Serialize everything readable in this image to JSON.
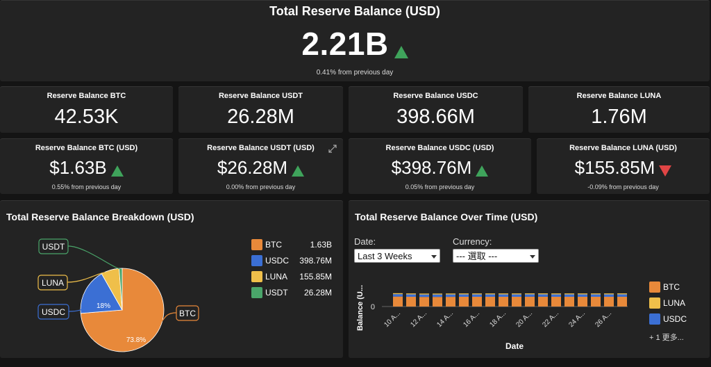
{
  "colors": {
    "btc": "#e8893a",
    "usdc": "#3b6fd4",
    "luna": "#efbf4a",
    "usdt": "#4aa56a",
    "up": "#3fa35b",
    "down": "#e04545"
  },
  "total": {
    "title": "Total Reserve Balance (USD)",
    "value": "2.21B",
    "trend": "up",
    "change": "0.41% from previous day"
  },
  "counts": [
    {
      "title": "Reserve Balance BTC",
      "value": "42.53K"
    },
    {
      "title": "Reserve Balance USDT",
      "value": "26.28M"
    },
    {
      "title": "Reserve Balance USDC",
      "value": "398.66M"
    },
    {
      "title": "Reserve Balance LUNA",
      "value": "1.76M"
    }
  ],
  "usd": [
    {
      "title": "Reserve Balance BTC (USD)",
      "value": "$1.63B",
      "trend": "up",
      "change": "0.55% from previous day"
    },
    {
      "title": "Reserve Balance USDT (USD)",
      "value": "$26.28M",
      "trend": "up",
      "change": "0.00% from previous day"
    },
    {
      "title": "Reserve Balance USDC (USD)",
      "value": "$398.76M",
      "trend": "up",
      "change": "0.05% from previous day"
    },
    {
      "title": "Reserve Balance LUNA (USD)",
      "value": "$155.85M",
      "trend": "down",
      "change": "-0.09% from previous day"
    }
  ],
  "breakdown": {
    "title": "Total Reserve Balance Breakdown (USD)",
    "legend": [
      {
        "name": "BTC",
        "value": "1.63B",
        "color": "#e8893a"
      },
      {
        "name": "USDC",
        "value": "398.76M",
        "color": "#3b6fd4"
      },
      {
        "name": "LUNA",
        "value": "155.85M",
        "color": "#efbf4a"
      },
      {
        "name": "USDT",
        "value": "26.28M",
        "color": "#4aa56a"
      }
    ],
    "callouts": {
      "usdt": "USDT",
      "luna": "LUNA",
      "usdc": "USDC",
      "btc": "BTC"
    },
    "pct_labels": {
      "btc": "73.8%",
      "usdc": "18%"
    }
  },
  "chart_data": [
    {
      "type": "pie",
      "labels": [
        "BTC",
        "USDC",
        "LUNA",
        "USDT"
      ],
      "values": [
        1630000000,
        398760000,
        155850000,
        26280000
      ],
      "percent_labels": [
        "73.8%",
        "18%",
        "",
        ""
      ],
      "colors": [
        "#e8893a",
        "#3b6fd4",
        "#efbf4a",
        "#4aa56a"
      ]
    },
    {
      "type": "bar",
      "stacked": true,
      "xlabel": "Date",
      "ylabel": "Balance (U...",
      "y_tick_labels": [
        "0"
      ],
      "x_tick_labels": [
        "10 A...",
        "12 A...",
        "14 A...",
        "16 A...",
        "18 A...",
        "20 A...",
        "22 A...",
        "24 A...",
        "26 A..."
      ],
      "num_bars": 18,
      "series": [
        {
          "name": "BTC",
          "color": "#e8893a",
          "values": [
            1.66,
            1.62,
            1.6,
            1.6,
            1.61,
            1.62,
            1.62,
            1.62,
            1.62,
            1.62,
            1.63,
            1.63,
            1.62,
            1.62,
            1.62,
            1.62,
            1.62,
            1.63
          ]
        },
        {
          "name": "USDC",
          "color": "#3b6fd4",
          "values": [
            0.4,
            0.4,
            0.4,
            0.4,
            0.4,
            0.4,
            0.4,
            0.4,
            0.4,
            0.4,
            0.4,
            0.4,
            0.4,
            0.4,
            0.4,
            0.4,
            0.4,
            0.4
          ]
        },
        {
          "name": "LUNA",
          "color": "#efbf4a",
          "values": [
            0.16,
            0.16,
            0.16,
            0.16,
            0.16,
            0.16,
            0.16,
            0.16,
            0.16,
            0.16,
            0.16,
            0.16,
            0.16,
            0.16,
            0.16,
            0.16,
            0.16,
            0.16
          ]
        }
      ]
    }
  ],
  "timeline": {
    "title": "Total Reserve Balance Over Time (USD)",
    "date_label": "Date:",
    "date_value": "Last 3 Weeks",
    "currency_label": "Currency:",
    "currency_value": "--- 選取 ---",
    "ylabel": "Balance (U...",
    "y_zero": "0",
    "xlabel": "Date",
    "legend": [
      {
        "name": "BTC",
        "color": "#e8893a"
      },
      {
        "name": "LUNA",
        "color": "#efbf4a"
      },
      {
        "name": "USDC",
        "color": "#3b6fd4"
      }
    ],
    "more": "+ 1 更多..."
  }
}
